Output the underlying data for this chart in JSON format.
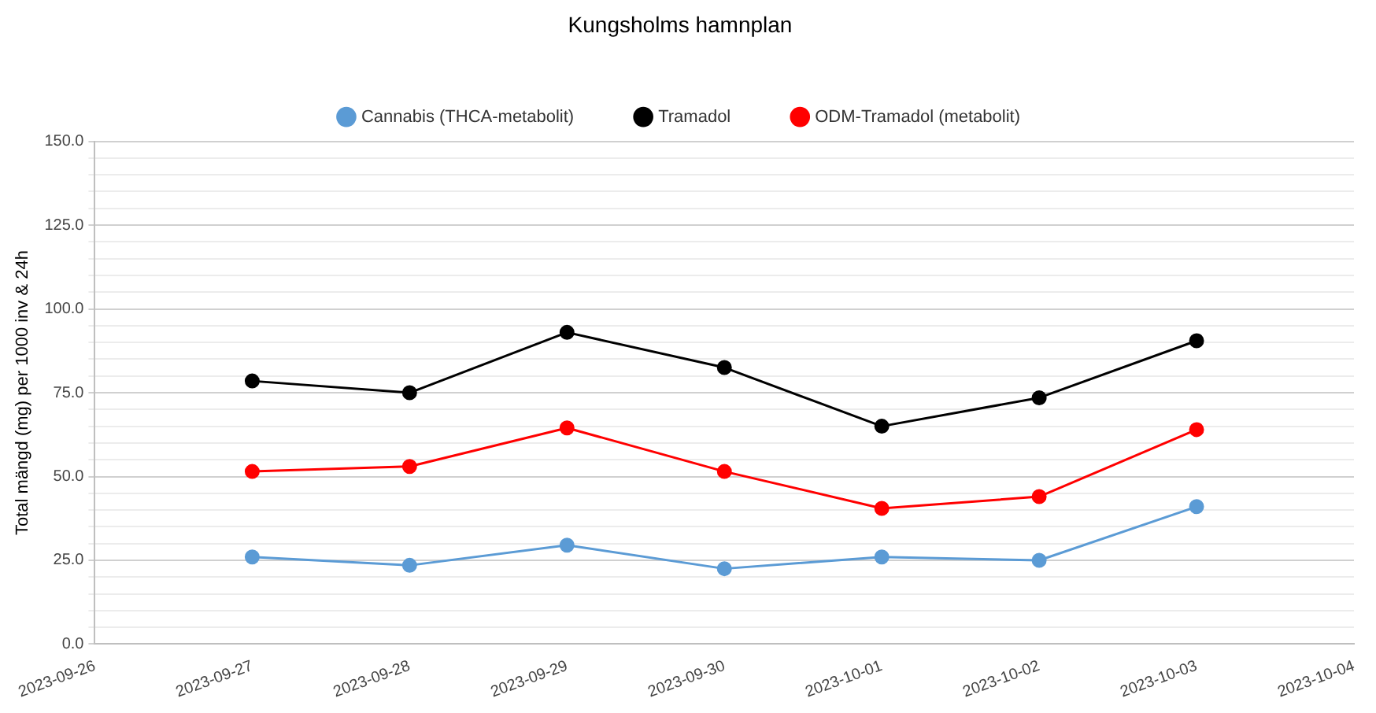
{
  "chart_data": {
    "type": "line",
    "title": "Kungsholms hamnplan",
    "ylabel": "Total mängd (mg) per 1000 inv & 24h",
    "x": [
      "2023-09-27",
      "2023-09-28",
      "2023-09-29",
      "2023-09-30",
      "2023-10-01",
      "2023-10-02",
      "2023-10-03"
    ],
    "series": [
      {
        "name": "Cannabis (THCA-metabolit)",
        "color": "#5b9bd5",
        "values": [
          26,
          23.5,
          29.5,
          22.5,
          26,
          25,
          41
        ]
      },
      {
        "name": "Tramadol",
        "color": "#000000",
        "values": [
          78.5,
          75,
          93,
          82.5,
          65,
          73.5,
          90.5
        ]
      },
      {
        "name": "ODM-Tramadol (metabolit)",
        "color": "#ff0000",
        "values": [
          51.5,
          53,
          64.5,
          51.5,
          40.5,
          44,
          64
        ]
      }
    ],
    "xlim": [
      "2023-09-26",
      "2023-10-04"
    ],
    "xticks": [
      "2023-09-26",
      "2023-09-27",
      "2023-09-28",
      "2023-09-29",
      "2023-09-30",
      "2023-10-01",
      "2023-10-02",
      "2023-10-03",
      "2023-10-04"
    ],
    "ylim": [
      0,
      150
    ],
    "yticks": [
      {
        "value": 0,
        "label": "0.0"
      },
      {
        "value": 5,
        "label": null
      },
      {
        "value": 10,
        "label": null
      },
      {
        "value": 15,
        "label": null
      },
      {
        "value": 20,
        "label": null
      },
      {
        "value": 25,
        "label": "25.0"
      },
      {
        "value": 30,
        "label": null
      },
      {
        "value": 35,
        "label": null
      },
      {
        "value": 40,
        "label": null
      },
      {
        "value": 45,
        "label": null
      },
      {
        "value": 50,
        "label": "50.0"
      },
      {
        "value": 55,
        "label": null
      },
      {
        "value": 60,
        "label": null
      },
      {
        "value": 65,
        "label": null
      },
      {
        "value": 70,
        "label": null
      },
      {
        "value": 75,
        "label": "75.0"
      },
      {
        "value": 80,
        "label": null
      },
      {
        "value": 85,
        "label": null
      },
      {
        "value": 90,
        "label": null
      },
      {
        "value": 95,
        "label": null
      },
      {
        "value": 100,
        "label": "100.0"
      },
      {
        "value": 105,
        "label": null
      },
      {
        "value": 110,
        "label": null
      },
      {
        "value": 115,
        "label": null
      },
      {
        "value": 120,
        "label": null
      },
      {
        "value": 125,
        "label": "125.0"
      },
      {
        "value": 130,
        "label": null
      },
      {
        "value": 135,
        "label": null
      },
      {
        "value": 140,
        "label": null
      },
      {
        "value": 145,
        "label": null
      },
      {
        "value": 150,
        "label": "150.0"
      }
    ],
    "grid": "y",
    "legend": "top",
    "marker": "circle",
    "line_style": "solid"
  }
}
